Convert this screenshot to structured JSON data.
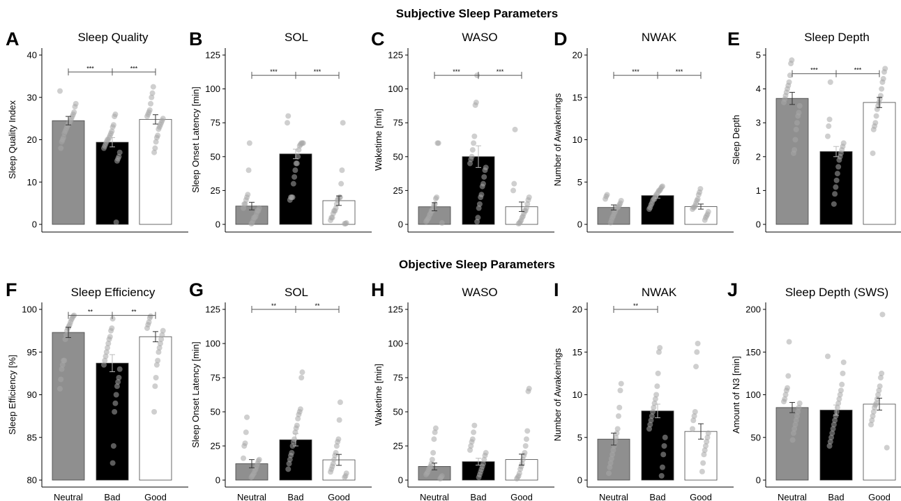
{
  "section_titles": {
    "subjective": "Subjective Sleep Parameters",
    "objective": "Objective Sleep Parameters"
  },
  "categories": [
    "Neutral",
    "Bad",
    "Good"
  ],
  "colors": {
    "Neutral": "#8f8f8f",
    "Bad": "#000000",
    "Good": "#ffffff",
    "dots": "#a8a8a8"
  },
  "chart_data": [
    {
      "panel": "A",
      "type": "bar",
      "title": "Sleep Quality",
      "ylabel": "Sleep Quality Index",
      "ylim": [
        0,
        40
      ],
      "yticks": [
        0,
        10,
        20,
        30,
        40
      ],
      "show_xlabels": false,
      "categories": [
        "Neutral",
        "Bad",
        "Good"
      ],
      "values": [
        24.5,
        19.4,
        24.8
      ],
      "errors": [
        1.0,
        1.1,
        1.1
      ],
      "points": [
        [
          31.5,
          28.5,
          27.8,
          26.5,
          26,
          25.5,
          25,
          24.5,
          24,
          24,
          23.5,
          23,
          22.5,
          22,
          21.5,
          20.5,
          20,
          19.5,
          18
        ],
        [
          26,
          25.5,
          23.5,
          23,
          22,
          21.5,
          21,
          20.5,
          20,
          20,
          19.5,
          19,
          18.5,
          18,
          17,
          16,
          15.5,
          15,
          0.5
        ],
        [
          32.5,
          31,
          30,
          28.5,
          27,
          26.5,
          26,
          25.5,
          25,
          24.5,
          24,
          23.5,
          23,
          22.5,
          21,
          20.5,
          19.5,
          18,
          17
        ]
      ],
      "sig": [
        {
          "from": 0,
          "to": 1,
          "label": "***",
          "y": 36
        },
        {
          "from": 1,
          "to": 2,
          "label": "***",
          "y": 36
        }
      ]
    },
    {
      "panel": "B",
      "type": "bar",
      "title": "SOL",
      "ylabel": "Sleep Onset Latency [min]",
      "ylim": [
        0,
        125
      ],
      "yticks": [
        0,
        25,
        50,
        75,
        100,
        125
      ],
      "show_xlabels": false,
      "categories": [
        "Neutral",
        "Bad",
        "Good"
      ],
      "values": [
        13.5,
        52.0,
        17.5
      ],
      "errors": [
        2.8,
        3.5,
        3.5
      ],
      "points": [
        [
          60,
          40,
          22,
          20,
          18,
          15,
          15,
          12,
          12,
          10,
          10,
          8,
          6,
          5,
          5,
          3,
          1,
          0.5
        ],
        [
          80,
          75,
          60,
          60,
          60,
          59,
          58,
          55,
          50,
          45,
          45,
          40,
          35,
          30,
          20,
          20,
          20,
          18
        ],
        [
          75,
          40,
          30,
          20,
          20,
          19,
          18,
          15,
          12,
          10,
          10,
          8,
          5,
          5,
          3,
          1,
          0.5,
          0.5
        ]
      ],
      "sig": [
        {
          "from": 0,
          "to": 1,
          "label": "***",
          "y": 110
        },
        {
          "from": 1,
          "to": 2,
          "label": "***",
          "y": 110
        }
      ]
    },
    {
      "panel": "C",
      "type": "bar",
      "title": "WASO",
      "ylabel": "Waketime [min]",
      "ylim": [
        0,
        125
      ],
      "yticks": [
        0,
        25,
        50,
        75,
        100,
        125
      ],
      "show_xlabels": false,
      "categories": [
        "Neutral",
        "Bad",
        "Good"
      ],
      "values": [
        13.0,
        50.0,
        13.0
      ],
      "errors": [
        3.0,
        8.0,
        3.5
      ],
      "points": [
        [
          60,
          60,
          20,
          19,
          15,
          14,
          12,
          10,
          10,
          8,
          7,
          5,
          4,
          3,
          2,
          1
        ],
        [
          110,
          90,
          88,
          65,
          60,
          55,
          50,
          48,
          45,
          42,
          40,
          35,
          30,
          28,
          22,
          20,
          15,
          12,
          5,
          2
        ],
        [
          70,
          30,
          25,
          20,
          18,
          15,
          12,
          10,
          10,
          8,
          6,
          5,
          3,
          2,
          1,
          0.5
        ]
      ],
      "sig": [
        {
          "from": 0,
          "to": 1,
          "label": "***",
          "y": 110
        },
        {
          "from": 1,
          "to": 2,
          "label": "***",
          "y": 110
        }
      ]
    },
    {
      "panel": "D",
      "type": "bar",
      "title": "NWAK",
      "ylabel": "Number of Awakenings",
      "ylim": [
        0,
        20
      ],
      "yticks": [
        0,
        5,
        10,
        15,
        20
      ],
      "show_xlabels": false,
      "categories": [
        "Neutral",
        "Bad",
        "Good"
      ],
      "values": [
        2.0,
        3.4,
        2.1
      ],
      "errors": [
        0.3,
        0.3,
        0.3
      ],
      "points": [
        [
          3.5,
          3.3,
          3,
          2.8,
          2.5,
          2.3,
          2.1,
          2,
          2,
          1.8,
          1.5,
          1.3,
          1,
          0.8,
          0.5,
          0.2
        ],
        [
          4.5,
          4.4,
          4.2,
          4,
          4,
          3.8,
          3.6,
          3.5,
          3.3,
          3,
          3,
          2.8,
          2.5,
          2.3,
          2,
          1.8
        ],
        [
          4.2,
          3.8,
          3.5,
          3,
          2.8,
          2.5,
          2.2,
          2,
          2,
          1.8,
          1.5,
          1.2,
          1,
          0.8,
          0.5
        ]
      ],
      "sig": [
        {
          "from": 0,
          "to": 1,
          "label": "***",
          "y": 17.6
        },
        {
          "from": 1,
          "to": 2,
          "label": "***",
          "y": 17.6
        }
      ]
    },
    {
      "panel": "E",
      "type": "bar",
      "title": "Sleep Depth",
      "ylabel": "Sleep Depth",
      "ylim": [
        0,
        5
      ],
      "yticks": [
        0,
        1,
        2,
        3,
        4,
        5
      ],
      "show_xlabels": false,
      "categories": [
        "Neutral",
        "Bad",
        "Good"
      ],
      "values": [
        3.72,
        2.15,
        3.6
      ],
      "errors": [
        0.18,
        0.15,
        0.15
      ],
      "points": [
        [
          4.85,
          4.75,
          4.4,
          4.2,
          4.1,
          4.0,
          3.9,
          3.8,
          3.7,
          3.6,
          3.5,
          3.3,
          3.2,
          3.0,
          2.8,
          2.5,
          2.2,
          2.1
        ],
        [
          4.2,
          3.1,
          2.9,
          2.6,
          2.4,
          2.3,
          2.2,
          2.1,
          2.0,
          1.9,
          1.7,
          1.5,
          1.3,
          1.1,
          0.9,
          0.6
        ],
        [
          4.6,
          4.5,
          4.3,
          4.2,
          4.0,
          3.8,
          3.7,
          3.6,
          3.5,
          3.4,
          3.2,
          3.0,
          2.9,
          2.8,
          2.1
        ]
      ],
      "sig": [
        {
          "from": 0,
          "to": 1,
          "label": "***",
          "y": 4.45
        },
        {
          "from": 1,
          "to": 2,
          "label": "***",
          "y": 4.45
        }
      ]
    },
    {
      "panel": "F",
      "type": "bar",
      "title": "Sleep Efficiency",
      "ylabel": "Sleep Efficiency [%]",
      "ylim": [
        80,
        100
      ],
      "yticks": [
        80,
        85,
        90,
        95,
        100
      ],
      "show_xlabels": true,
      "categories": [
        "Neutral",
        "Bad",
        "Good"
      ],
      "values": [
        97.3,
        93.7,
        96.8
      ],
      "errors": [
        0.6,
        1.0,
        0.6
      ],
      "points": [
        [
          99.3,
          99.2,
          99,
          98.8,
          98.5,
          98.2,
          98,
          97.8,
          97.5,
          97,
          96.5,
          94,
          94,
          93.5,
          93,
          91.8,
          90.7
        ],
        [
          98.9,
          97.8,
          97.5,
          96.8,
          96.5,
          96,
          95.5,
          95,
          94.5,
          94,
          93.5,
          93,
          92,
          91.5,
          91,
          90,
          89,
          88,
          84,
          82
        ],
        [
          99.2,
          99,
          98.5,
          98.2,
          97.8,
          97.5,
          97,
          96.5,
          96,
          95.5,
          95,
          94,
          93.5,
          92,
          91,
          88
        ]
      ],
      "sig": [
        {
          "from": 0,
          "to": 1,
          "label": "**",
          "y": 99.3
        },
        {
          "from": 1,
          "to": 2,
          "label": "**",
          "y": 99.3
        }
      ]
    },
    {
      "panel": "G",
      "type": "bar",
      "title": "SOL",
      "ylabel": "Sleep Onset Latency [min]",
      "ylim": [
        0,
        125
      ],
      "yticks": [
        0,
        25,
        50,
        75,
        100,
        125
      ],
      "show_xlabels": true,
      "categories": [
        "Neutral",
        "Bad",
        "Good"
      ],
      "values": [
        12.0,
        29.5,
        14.8
      ],
      "errors": [
        3.0,
        4.5,
        4.0
      ],
      "points": [
        [
          46,
          35,
          27,
          25,
          16,
          15,
          14,
          12,
          10,
          8,
          7,
          5,
          4,
          3,
          2
        ],
        [
          79,
          75,
          52,
          50,
          48,
          45,
          40,
          38,
          35,
          30,
          28,
          25,
          20,
          18,
          15,
          12,
          8
        ],
        [
          57,
          44,
          30,
          28,
          25,
          20,
          18,
          15,
          12,
          10,
          8,
          6,
          5,
          3,
          2
        ]
      ],
      "sig": [
        {
          "from": 0,
          "to": 1,
          "label": "**",
          "y": 125
        },
        {
          "from": 1,
          "to": 2,
          "label": "**",
          "y": 125
        }
      ]
    },
    {
      "panel": "H",
      "type": "bar",
      "title": "WASO",
      "ylabel": "Waketime [min]",
      "ylim": [
        0,
        125
      ],
      "yticks": [
        0,
        25,
        50,
        75,
        100,
        125
      ],
      "show_xlabels": true,
      "categories": [
        "Neutral",
        "Bad",
        "Good"
      ],
      "values": [
        10.0,
        13.5,
        15.0
      ],
      "errors": [
        2.5,
        2.5,
        4.0
      ],
      "points": [
        [
          38,
          35,
          30,
          20,
          15,
          12,
          10,
          9,
          8,
          6,
          5,
          4,
          3,
          2,
          1
        ],
        [
          40,
          35,
          30,
          28,
          25,
          22,
          20,
          18,
          15,
          12,
          10,
          8,
          6,
          4,
          2
        ],
        [
          67,
          65,
          36,
          30,
          25,
          20,
          18,
          15,
          12,
          10,
          8,
          5,
          3,
          2,
          1
        ]
      ],
      "sig": []
    },
    {
      "panel": "I",
      "type": "bar",
      "title": "NWAK",
      "ylabel": "Number of Awakenings",
      "ylim": [
        0,
        20
      ],
      "yticks": [
        0,
        5,
        10,
        15,
        20
      ],
      "show_xlabels": true,
      "categories": [
        "Neutral",
        "Bad",
        "Good"
      ],
      "values": [
        4.8,
        8.1,
        5.7
      ],
      "errors": [
        0.7,
        0.8,
        0.9
      ],
      "points": [
        [
          11.3,
          10.5,
          8.5,
          7.5,
          6,
          5.5,
          5,
          4.5,
          4,
          3.5,
          3,
          2.5,
          2,
          1.5,
          0.8
        ],
        [
          15.5,
          15,
          12.5,
          11,
          10,
          9.5,
          9,
          8.5,
          8,
          7.5,
          7,
          6.5,
          6,
          5,
          4,
          3,
          1.5,
          0.5
        ],
        [
          16,
          15,
          13.3,
          8,
          7.5,
          7,
          6,
          5.5,
          5,
          4.5,
          4,
          3.5,
          3,
          2,
          1
        ]
      ],
      "sig": [
        {
          "from": 0,
          "to": 1,
          "label": "**",
          "y": 20
        }
      ]
    },
    {
      "panel": "J",
      "type": "bar",
      "title": "Sleep Depth (SWS)",
      "ylabel": "Amount of N3 [min]",
      "ylim": [
        0,
        200
      ],
      "yticks": [
        0,
        50,
        100,
        150,
        200
      ],
      "show_xlabels": true,
      "categories": [
        "Neutral",
        "Bad",
        "Good"
      ],
      "values": [
        85.0,
        82.0,
        89.0
      ],
      "errors": [
        6.0,
        6.0,
        7.0
      ],
      "points": [
        [
          162,
          122,
          108,
          105,
          100,
          95,
          92,
          90,
          85,
          80,
          75,
          70,
          65,
          60,
          55,
          47
        ],
        [
          145,
          138,
          125,
          112,
          105,
          100,
          95,
          90,
          85,
          80,
          75,
          70,
          65,
          60,
          55,
          50,
          45,
          40
        ],
        [
          194,
          125,
          120,
          110,
          105,
          100,
          95,
          90,
          88,
          85,
          80,
          75,
          70,
          65,
          38
        ]
      ],
      "sig": []
    }
  ]
}
